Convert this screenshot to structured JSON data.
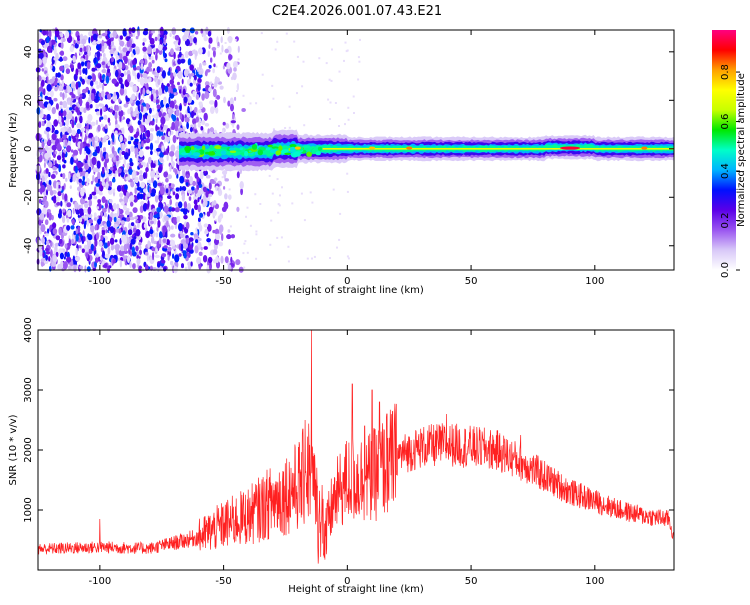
{
  "title": "C2E4.2026.001.07.43.E21",
  "colors": {
    "snr_line": "#ff2020",
    "background": "#ffffff",
    "axis": "#000000"
  },
  "chart_data": [
    {
      "type": "heatmap",
      "xlabel": "Height of straight line (km)",
      "ylabel": "Frequency (Hz)",
      "xlim": [
        -125,
        132
      ],
      "ylim": [
        -50,
        49
      ],
      "x_ticks": [
        -100,
        -50,
        0,
        50,
        100
      ],
      "y_ticks": [
        -40,
        -20,
        0,
        20,
        40
      ],
      "x_tick_labels": [
        "-100",
        "-50",
        "0",
        "50",
        "100"
      ],
      "y_tick_labels": [
        "-40",
        "-20",
        "0",
        "20",
        "40"
      ],
      "noise_region_x": [
        -125,
        -55
      ],
      "signal_onset_x": -68,
      "signal_center_hz": 0,
      "peak_regions": [
        {
          "x": -20,
          "amp": 0.8
        },
        {
          "x": 10,
          "amp": 0.8
        },
        {
          "x": 25,
          "amp": 0.85
        },
        {
          "x": 90,
          "amp": 0.95
        },
        {
          "x": 120,
          "amp": 0.85
        }
      ],
      "colorbar": {
        "label": "Normalized spectral amplitude",
        "range": [
          0.0,
          0.97
        ],
        "ticks": [
          0.0,
          0.2,
          0.4,
          0.6,
          0.8
        ],
        "tick_labels": [
          "0.0",
          "0.2",
          "0.4",
          "0.6",
          "0.8"
        ],
        "colormap": [
          "#ffffff",
          "#d8c8f8",
          "#9a55f0",
          "#5a00e8",
          "#0010ff",
          "#00b4ff",
          "#00ffc8",
          "#00e800",
          "#c8ff00",
          "#ffff00",
          "#ffa000",
          "#ff0000",
          "#ff0080"
        ]
      }
    },
    {
      "type": "line",
      "xlabel": "Height of straight line (km)",
      "ylabel": "SNR (10 * v/v)",
      "xlim": [
        -125,
        132
      ],
      "ylim": [
        0,
        4000
      ],
      "x_ticks": [
        -100,
        -50,
        0,
        50,
        100
      ],
      "y_ticks": [
        1000,
        2000,
        3000,
        4000
      ],
      "x_tick_labels": [
        "-100",
        "-50",
        "0",
        "50",
        "100"
      ],
      "y_tick_labels": [
        "1000",
        "2000",
        "3000",
        "4000"
      ],
      "series": [
        {
          "envelope": {
            "x": [
              -125,
              -100,
              -80,
              -70,
              -60,
              -50,
              -40,
              -30,
              -20,
              -15,
              -12,
              -8,
              -5,
              0,
              10,
              20,
              30,
              40,
              50,
              60,
              70,
              80,
              90,
              100,
              110,
              120,
              130,
              132
            ],
            "y": [
              350,
              380,
              360,
              450,
              550,
              750,
              900,
              1150,
              1400,
              1700,
              1100,
              800,
              1200,
              1500,
              1550,
              1900,
              2050,
              2100,
              2050,
              2000,
              1800,
              1550,
              1300,
              1150,
              1000,
              900,
              850,
              500
            ]
          },
          "spikes": [
            {
              "x": -14.5,
              "y": 4000
            },
            {
              "x": -17,
              "y": 2500
            },
            {
              "x": 2,
              "y": 3100
            },
            {
              "x": 7,
              "y": 2400
            },
            {
              "x": 10,
              "y": 3000
            },
            {
              "x": 13,
              "y": 2800
            },
            {
              "x": 16,
              "y": 2600
            },
            {
              "x": 40,
              "y": 2600
            },
            {
              "x": 70,
              "y": 2250
            },
            {
              "x": -100,
              "y": 850
            }
          ]
        }
      ]
    }
  ]
}
